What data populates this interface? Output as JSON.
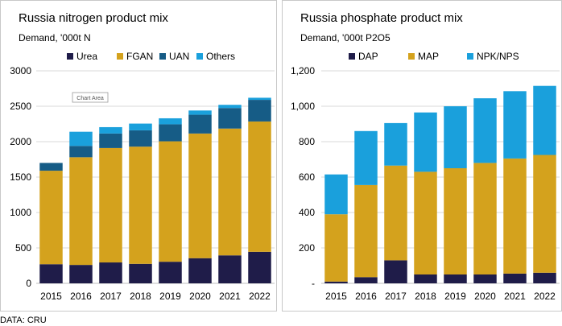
{
  "source_note": "DATA: CRU",
  "chart_data": [
    {
      "type": "bar",
      "stacked": true,
      "title": "Russia nitrogen product mix",
      "subtitle": "Demand, '000t N",
      "categories": [
        "2015",
        "2016",
        "2017",
        "2018",
        "2019",
        "2020",
        "2021",
        "2022"
      ],
      "series": [
        {
          "name": "Urea",
          "color": "#1f1c49",
          "values": [
            270,
            260,
            295,
            275,
            305,
            355,
            395,
            445
          ]
        },
        {
          "name": "FGAN",
          "color": "#d4a21d",
          "values": [
            1320,
            1520,
            1615,
            1655,
            1700,
            1760,
            1790,
            1840
          ]
        },
        {
          "name": "UAN",
          "color": "#165c86",
          "values": [
            110,
            160,
            205,
            230,
            240,
            265,
            290,
            305
          ]
        },
        {
          "name": "Others",
          "color": "#1aa0dc",
          "values": [
            0,
            200,
            90,
            95,
            85,
            60,
            45,
            30
          ]
        }
      ],
      "yticks": [
        "0",
        "500",
        "1000",
        "1500",
        "2000",
        "2500",
        "3000"
      ],
      "ylim": [
        0,
        3000
      ],
      "grid": true,
      "legend": "top",
      "tooltip": "Chart Area"
    },
    {
      "type": "bar",
      "stacked": true,
      "title": "Russia phosphate product mix",
      "subtitle": "Demand, '000t P2O5",
      "categories": [
        "2015",
        "2016",
        "2017",
        "2018",
        "2019",
        "2020",
        "2021",
        "2022"
      ],
      "series": [
        {
          "name": "DAP",
          "color": "#1f1c49",
          "values": [
            10,
            35,
            130,
            50,
            50,
            50,
            55,
            60
          ]
        },
        {
          "name": "MAP",
          "color": "#d4a21d",
          "values": [
            380,
            520,
            535,
            580,
            600,
            630,
            650,
            665
          ]
        },
        {
          "name": "NPK/NPS",
          "color": "#1aa0dc",
          "values": [
            225,
            305,
            240,
            335,
            350,
            365,
            380,
            390
          ]
        }
      ],
      "yticks": [
        "-",
        "200",
        "400",
        "600",
        "800",
        "1,000",
        "1,200"
      ],
      "ylim": [
        0,
        1200
      ],
      "grid": true,
      "legend": "top"
    }
  ]
}
